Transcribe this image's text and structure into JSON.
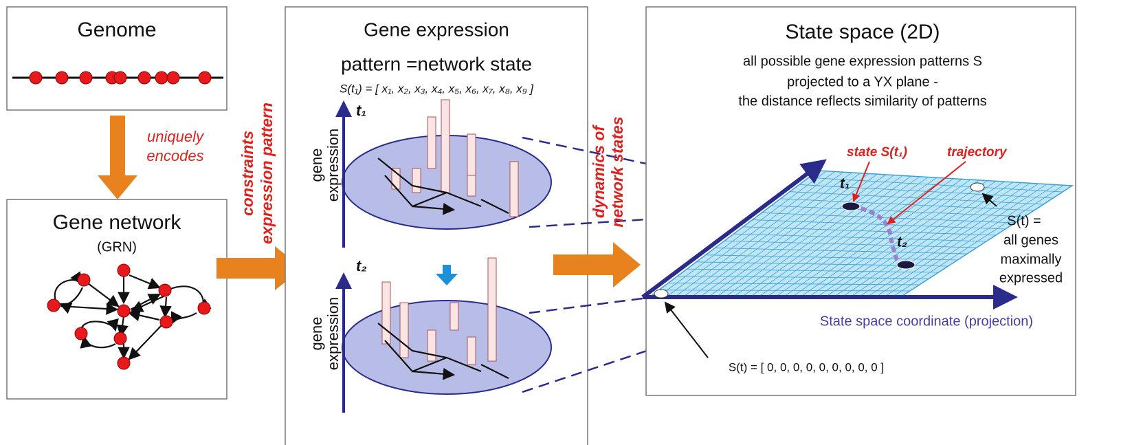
{
  "genome": {
    "title": "Genome"
  },
  "encode_label": [
    "uniquely",
    "encodes"
  ],
  "gene_network": {
    "title": "Gene network",
    "subtitle": "(GRN)"
  },
  "constraint_label": [
    "constraints",
    "expression pattern"
  ],
  "expression_panel": {
    "title": [
      "Gene expression",
      "pattern =network state"
    ],
    "state_vector": "S(t₁) = [ x₁, x₂, x₃, x₄, x₅, x₆, x₇, x₈, x₉ ]",
    "time_labels": [
      "t₁",
      "t₂"
    ],
    "axis_label": [
      "gene",
      "expression"
    ]
  },
  "dynamics_label": [
    "dynamics of",
    "network  states"
  ],
  "state_space": {
    "title": "State space (2D)",
    "description": [
      "all possible gene expression patterns S",
      "projected to a YX plane -",
      "the distance reflects similarity of patterns"
    ],
    "state_label": "state S(t₁)",
    "trajectory_label": "trajectory",
    "time_labels": [
      "t₁",
      "t₂"
    ],
    "max_label": [
      "S(t) =",
      "all genes",
      "maximally",
      "expressed"
    ],
    "axis_label": "State space coordinate (projection)",
    "zero_label": "S(t) = [ 0, 0, 0, 0, 0, 0, 0, 0, 0 ]"
  }
}
